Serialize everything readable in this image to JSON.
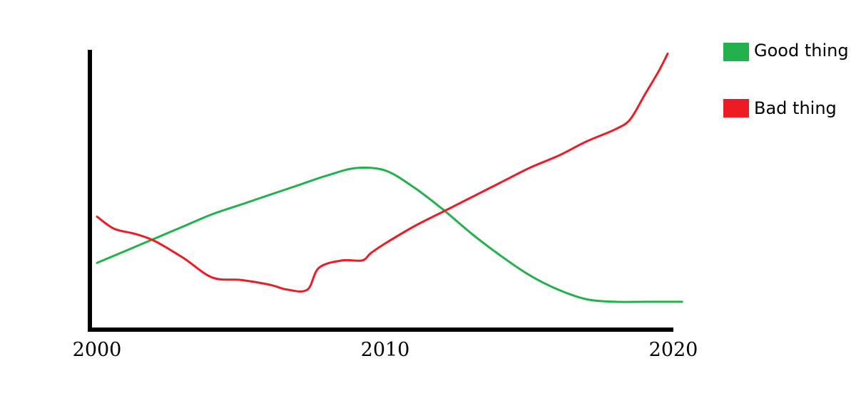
{
  "chart_data": {
    "type": "line",
    "title": "",
    "xlabel": "",
    "ylabel": "",
    "xlim": [
      2000,
      2020
    ],
    "ylim": [
      0,
      100
    ],
    "y_axis_ticks": false,
    "grid": false,
    "legend_position": "top-right",
    "x_ticks": [
      {
        "value": 2000,
        "label": "2000"
      },
      {
        "value": 2010,
        "label": "2010"
      },
      {
        "value": 2020,
        "label": "2020"
      }
    ],
    "series": [
      {
        "name": "Good thing",
        "color": "#22b14c",
        "points": [
          [
            2000.0,
            21
          ],
          [
            2001.0,
            26
          ],
          [
            2002.0,
            31
          ],
          [
            2003.0,
            36
          ],
          [
            2004.0,
            41
          ],
          [
            2005.0,
            45
          ],
          [
            2006.0,
            49
          ],
          [
            2007.0,
            53
          ],
          [
            2008.0,
            57
          ],
          [
            2009.0,
            60
          ],
          [
            2010.0,
            59
          ],
          [
            2011.0,
            52
          ],
          [
            2012.0,
            43
          ],
          [
            2013.0,
            33
          ],
          [
            2014.0,
            24
          ],
          [
            2015.0,
            16
          ],
          [
            2016.0,
            10
          ],
          [
            2017.0,
            6
          ],
          [
            2018.0,
            5
          ],
          [
            2019.0,
            5
          ],
          [
            2020.0,
            5
          ],
          [
            2020.3,
            5
          ]
        ]
      },
      {
        "name": "Bad thing",
        "color": "#ed1c24",
        "points": [
          [
            2000.0,
            40
          ],
          [
            2000.6,
            35
          ],
          [
            2001.3,
            33
          ],
          [
            2002.0,
            30
          ],
          [
            2003.0,
            23
          ],
          [
            2004.0,
            15
          ],
          [
            2005.0,
            14
          ],
          [
            2006.0,
            12
          ],
          [
            2006.6,
            10
          ],
          [
            2007.3,
            10
          ],
          [
            2007.7,
            19
          ],
          [
            2008.5,
            22
          ],
          [
            2009.2,
            22
          ],
          [
            2009.5,
            25
          ],
          [
            2010.0,
            29
          ],
          [
            2011.0,
            36
          ],
          [
            2012.0,
            42
          ],
          [
            2013.0,
            48
          ],
          [
            2014.0,
            54
          ],
          [
            2015.0,
            60
          ],
          [
            2016.0,
            65
          ],
          [
            2017.0,
            71
          ],
          [
            2018.0,
            76
          ],
          [
            2018.5,
            80
          ],
          [
            2019.0,
            90
          ],
          [
            2019.5,
            100
          ],
          [
            2019.8,
            107
          ]
        ]
      }
    ],
    "legend": [
      {
        "label": "Good thing",
        "color": "#22b14c"
      },
      {
        "label": "Bad thing",
        "color": "#ed1c24"
      }
    ]
  }
}
